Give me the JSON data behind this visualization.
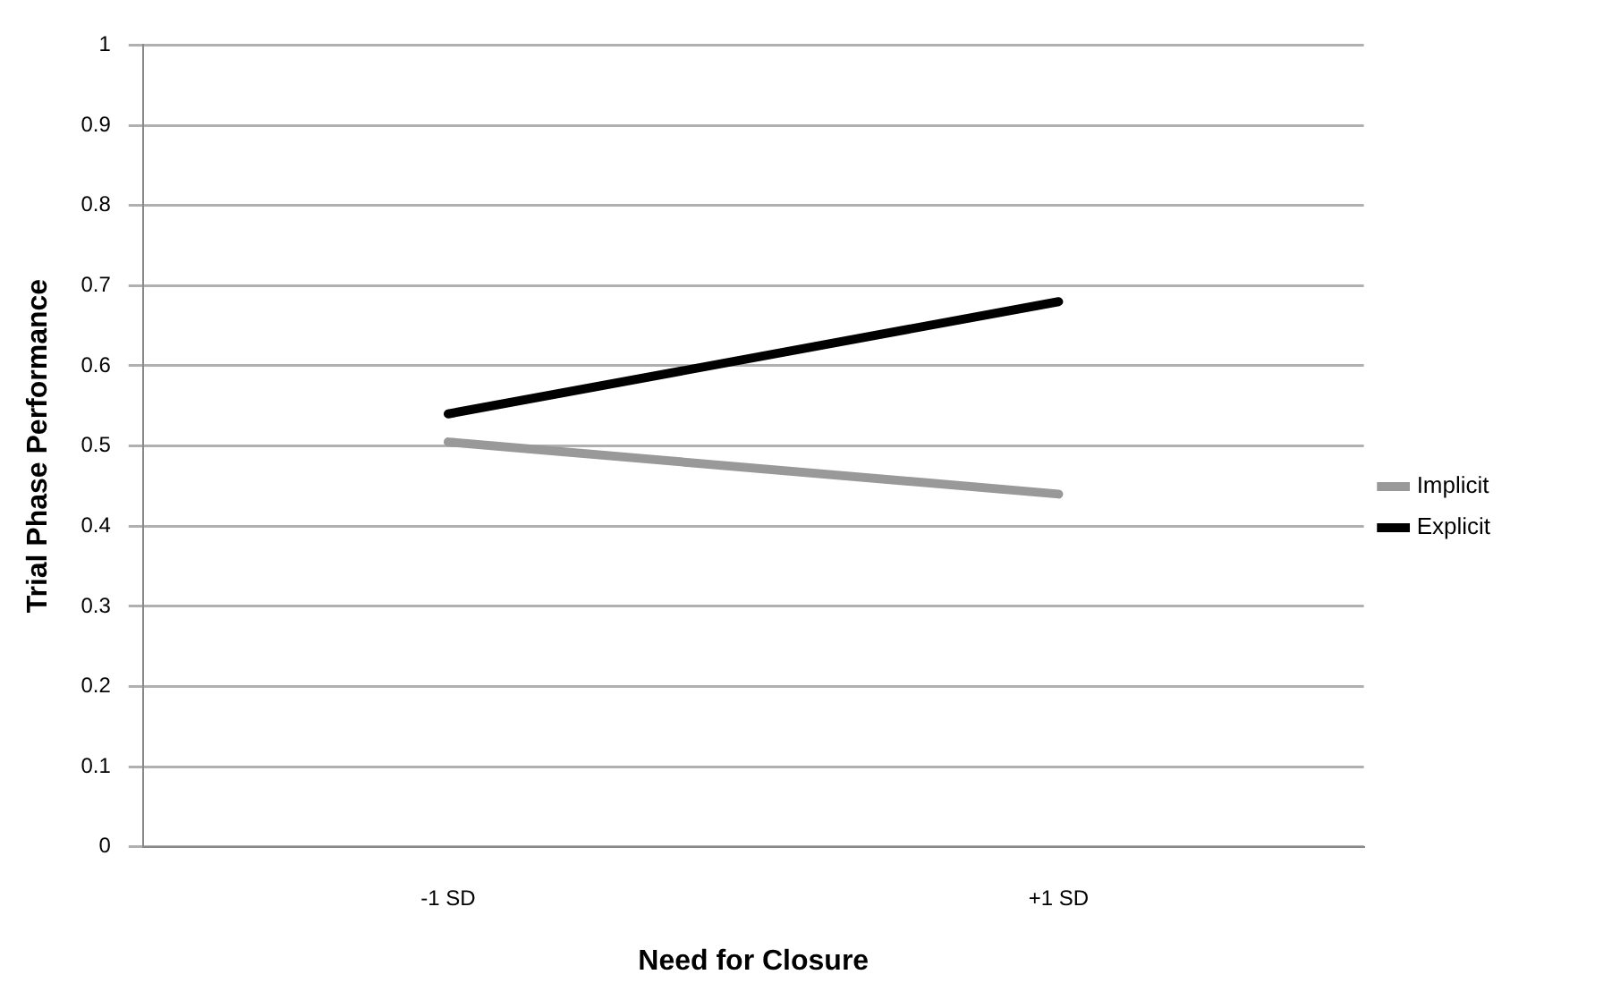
{
  "chart_data": {
    "type": "line",
    "xlabel": "Need for Closure",
    "ylabel": "Trial Phase Performance",
    "categories": [
      "-1 SD",
      "+1 SD"
    ],
    "series": [
      {
        "name": "Implicit",
        "color": "#999999",
        "values": [
          0.505,
          0.44
        ]
      },
      {
        "name": "Explicit",
        "color": "#000000",
        "values": [
          0.54,
          0.68
        ]
      }
    ],
    "ylim": [
      0,
      1
    ],
    "yticks": [
      0,
      0.1,
      0.2,
      0.3,
      0.4,
      0.5,
      0.6,
      0.7,
      0.8,
      0.9,
      1
    ],
    "grid": "y",
    "legend": "right",
    "marker": "none",
    "line_style": "solid"
  }
}
